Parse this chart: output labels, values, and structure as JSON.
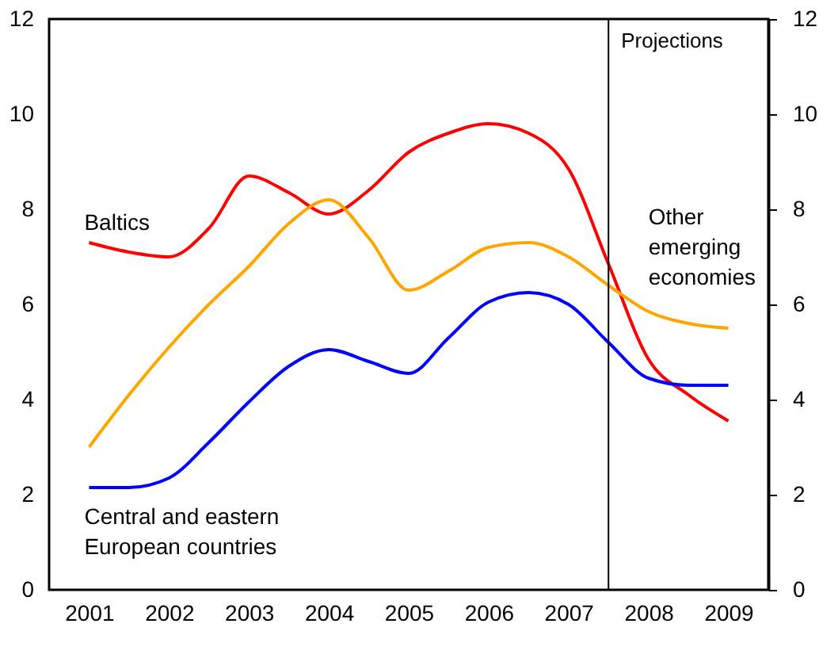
{
  "chart_data": {
    "type": "line",
    "x": [
      2001,
      2001.5,
      2002,
      2002.5,
      2003,
      2003.5,
      2004,
      2004.5,
      2005,
      2005.5,
      2006,
      2006.5,
      2007,
      2007.5,
      2008,
      2008.5,
      2009
    ],
    "xlim": [
      2000.5,
      2009.5
    ],
    "xticks": [
      2001,
      2002,
      2003,
      2004,
      2005,
      2006,
      2007,
      2008,
      2009
    ],
    "ylim": [
      0,
      12
    ],
    "yticks": [
      0,
      2,
      4,
      6,
      8,
      10,
      12
    ],
    "y2lim": [
      0,
      12
    ],
    "y2ticks": [
      0,
      2,
      4,
      6,
      8,
      10,
      12
    ],
    "series": [
      {
        "name": "Baltics",
        "color": "#ff0000",
        "values": [
          7.3,
          7.1,
          7.0,
          7.6,
          8.7,
          8.35,
          7.9,
          8.4,
          9.2,
          9.6,
          9.8,
          9.6,
          8.85,
          6.85,
          4.85,
          4.1,
          3.55
        ]
      },
      {
        "name": "Other emerging economies",
        "color": "#ffa500",
        "values": [
          3.0,
          4.1,
          5.1,
          6.0,
          6.8,
          7.7,
          8.2,
          7.4,
          6.3,
          6.7,
          7.2,
          7.3,
          7.0,
          6.4,
          5.85,
          5.6,
          5.5
        ]
      },
      {
        "name": "Central and eastern European countries",
        "color": "#0000ff",
        "values": [
          2.15,
          2.15,
          2.35,
          3.1,
          3.95,
          4.7,
          5.05,
          4.8,
          4.55,
          5.3,
          6.05,
          6.25,
          6.0,
          5.2,
          4.45,
          4.3,
          4.3
        ]
      }
    ],
    "ref_lines": [
      {
        "axis": "x",
        "value": 2007.5,
        "label": "Projections",
        "color": "#000000"
      }
    ],
    "grid": false,
    "line_style": "solid",
    "marker": "none"
  }
}
